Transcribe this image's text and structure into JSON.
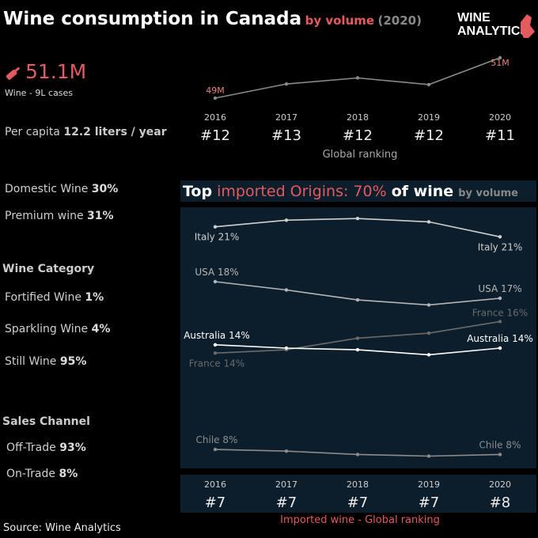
{
  "header": {
    "title": "Wine consumption in Canada",
    "subtitle": "by volume",
    "year": "(2020)",
    "logo": [
      "WINE",
      "ANALYTICS"
    ]
  },
  "kpi": {
    "value": "51.1M",
    "label": "Wine - 9L cases",
    "per_capita_label": "Per capita",
    "per_capita_value": "12.2 liters / year"
  },
  "stats": [
    {
      "label": "Domestic Wine",
      "value": "30%"
    },
    {
      "label": "Premium wine",
      "value": "31%"
    }
  ],
  "category": {
    "title": "Wine Category",
    "items": [
      {
        "label": "Fortified Wine",
        "value": "1%"
      },
      {
        "label": "Sparkling Wine",
        "value": "4%"
      },
      {
        "label": "Still Wine",
        "value": "95%"
      }
    ]
  },
  "channel": {
    "title": "Sales Channel",
    "items": [
      {
        "label": "Off-Trade",
        "value": "93%"
      },
      {
        "label": "On-Trade",
        "value": "8%"
      }
    ]
  },
  "source": "Source: Wine Analytics",
  "chart_data": [
    {
      "type": "line",
      "categories": [
        "2016",
        "2017",
        "2018",
        "2019",
        "2020"
      ],
      "values": [
        49,
        49.7,
        50,
        49.67,
        51
      ],
      "value_labels": [
        "49M",
        null,
        null,
        null,
        "51M"
      ],
      "color": "#8a8a8a",
      "ylim": [
        48.5,
        51.5
      ],
      "ranking": [
        "#12",
        "#13",
        "#12",
        "#12",
        "#11"
      ],
      "ranking_title": "Global ranking"
    },
    {
      "type": "line",
      "title": [
        "Top",
        "imported Origins: 70%",
        "of wine",
        "by volume"
      ],
      "categories": [
        "2016",
        "2017",
        "2018",
        "2019",
        "2020"
      ],
      "ylim": [
        7,
        22.5
      ],
      "series": [
        {
          "name": "Italy",
          "color": "#cfcfcf",
          "values": [
            21.3,
            21.7,
            21.8,
            21.6,
            20.7
          ],
          "value_labels": [
            "21%",
            null,
            null,
            null,
            "21%"
          ]
        },
        {
          "name": "USA",
          "color": "#b5b5b5",
          "values": [
            18,
            17.5,
            16.9,
            16.6,
            17
          ],
          "value_labels": [
            "18%",
            null,
            null,
            null,
            "17%"
          ]
        },
        {
          "name": "France",
          "color": "#6a6a6a",
          "values": [
            13.7,
            13.9,
            14.6,
            14.9,
            15.6
          ],
          "value_labels": [
            "14%",
            null,
            null,
            null,
            "16%"
          ]
        },
        {
          "name": "Australia",
          "color": "#ffffff",
          "values": [
            14.2,
            14,
            13.9,
            13.6,
            14
          ],
          "value_labels": [
            "14%",
            null,
            null,
            null,
            "14%"
          ]
        },
        {
          "name": "Chile",
          "color": "#8c8c8c",
          "values": [
            7.9,
            7.8,
            7.6,
            7.5,
            7.6
          ],
          "value_labels": [
            "8%",
            null,
            null,
            null,
            "8%"
          ]
        }
      ],
      "ranking": [
        "#7",
        "#7",
        "#7",
        "#7",
        "#8"
      ],
      "ranking_title": "Imported wine - Global ranking"
    }
  ]
}
